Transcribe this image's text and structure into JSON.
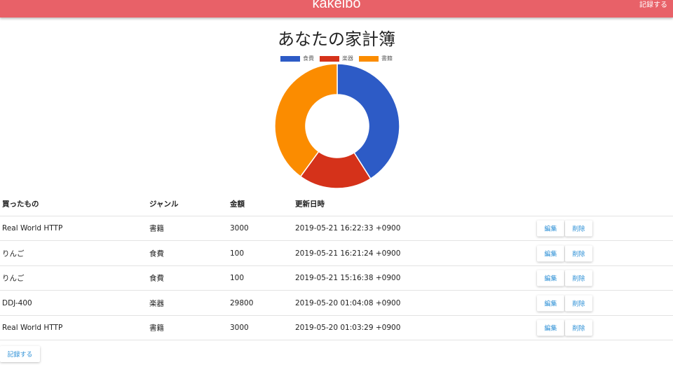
{
  "header": {
    "brand": "kakeibo",
    "record_label": "記録する"
  },
  "page_title": "あなたの家計簿",
  "chart_data": {
    "type": "doughnut",
    "legend": [
      "食費",
      "楽器",
      "書籍"
    ],
    "legend_position": "top",
    "values_percent": [
      41,
      19,
      40
    ],
    "colors": [
      "#2d5bc6",
      "#d5321a",
      "#fb8c00"
    ]
  },
  "table": {
    "headers": [
      "買ったもの",
      "ジャンル",
      "金額",
      "更新日時"
    ],
    "rows": [
      {
        "item": "Real World HTTP",
        "genre": "書籍",
        "amount": "3000",
        "updated": "2019-05-21 16:22:33 +0900"
      },
      {
        "item": "りんご",
        "genre": "食費",
        "amount": "100",
        "updated": "2019-05-21 16:21:24 +0900"
      },
      {
        "item": "りんご",
        "genre": "食費",
        "amount": "100",
        "updated": "2019-05-21 15:16:38 +0900"
      },
      {
        "item": "DDJ-400",
        "genre": "楽器",
        "amount": "29800",
        "updated": "2019-05-20 01:04:08 +0900"
      },
      {
        "item": "Real World HTTP",
        "genre": "書籍",
        "amount": "3000",
        "updated": "2019-05-20 01:03:29 +0900"
      }
    ],
    "edit_label": "編集",
    "delete_label": "削除"
  },
  "record_button_label": "記録する"
}
